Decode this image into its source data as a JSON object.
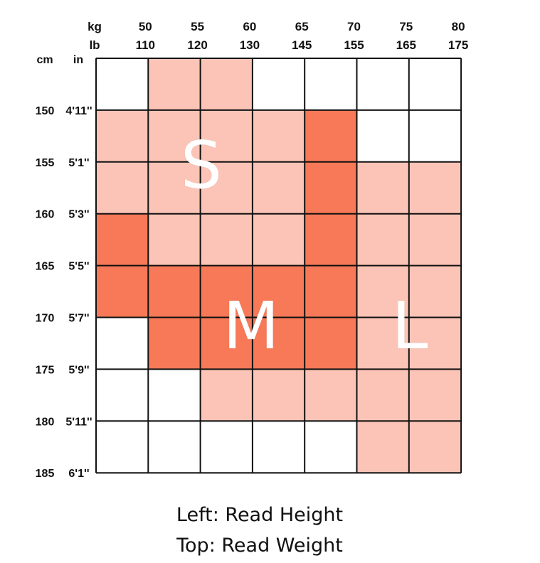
{
  "chart_data": {
    "type": "heatmap",
    "title": "",
    "weight_header": {
      "kg_unit": "kg",
      "lb_unit": "lb"
    },
    "height_header": {
      "cm_unit": "cm",
      "in_unit": "in"
    },
    "weight_columns": [
      {
        "kg": "50",
        "lb": "110"
      },
      {
        "kg": "55",
        "lb": "120"
      },
      {
        "kg": "60",
        "lb": "130"
      },
      {
        "kg": "65",
        "lb": "145"
      },
      {
        "kg": "70",
        "lb": "155"
      },
      {
        "kg": "75",
        "lb": "165"
      },
      {
        "kg": "80",
        "lb": "175"
      }
    ],
    "height_rows": [
      {
        "cm": "150",
        "in": "4'11''"
      },
      {
        "cm": "155",
        "in": "5'1''"
      },
      {
        "cm": "160",
        "in": "5'3''"
      },
      {
        "cm": "165",
        "in": "5'5''"
      },
      {
        "cm": "170",
        "in": "5'7''"
      },
      {
        "cm": "175",
        "in": "5'9''"
      },
      {
        "cm": "180",
        "in": "5'11''"
      },
      {
        "cm": "185",
        "in": "6'1''"
      }
    ],
    "cells": [
      [
        "",
        "S",
        "S",
        "",
        "",
        "",
        ""
      ],
      [
        "S",
        "S",
        "S",
        "S",
        "M",
        "",
        ""
      ],
      [
        "S",
        "S",
        "S",
        "S",
        "M",
        "L",
        "L"
      ],
      [
        "M",
        "S",
        "S",
        "S",
        "M",
        "L",
        "L"
      ],
      [
        "M",
        "M",
        "M",
        "M",
        "M",
        "L",
        "L"
      ],
      [
        "",
        "M",
        "M",
        "M",
        "M",
        "L",
        "L"
      ],
      [
        "",
        "",
        "L",
        "L",
        "L",
        "L",
        "L"
      ],
      [
        "",
        "",
        "",
        "",
        "",
        "L",
        "L"
      ]
    ],
    "size_labels": {
      "S": "S",
      "M": "M",
      "L": "L"
    },
    "colors": {
      "S": "#fcc4b6",
      "L": "#fcc4b6",
      "M": "#f77957",
      "empty": "#ffffff",
      "grid": "#111111"
    }
  },
  "captions": {
    "line1": "Left: Read Height",
    "line2": "Top: Read Weight"
  }
}
